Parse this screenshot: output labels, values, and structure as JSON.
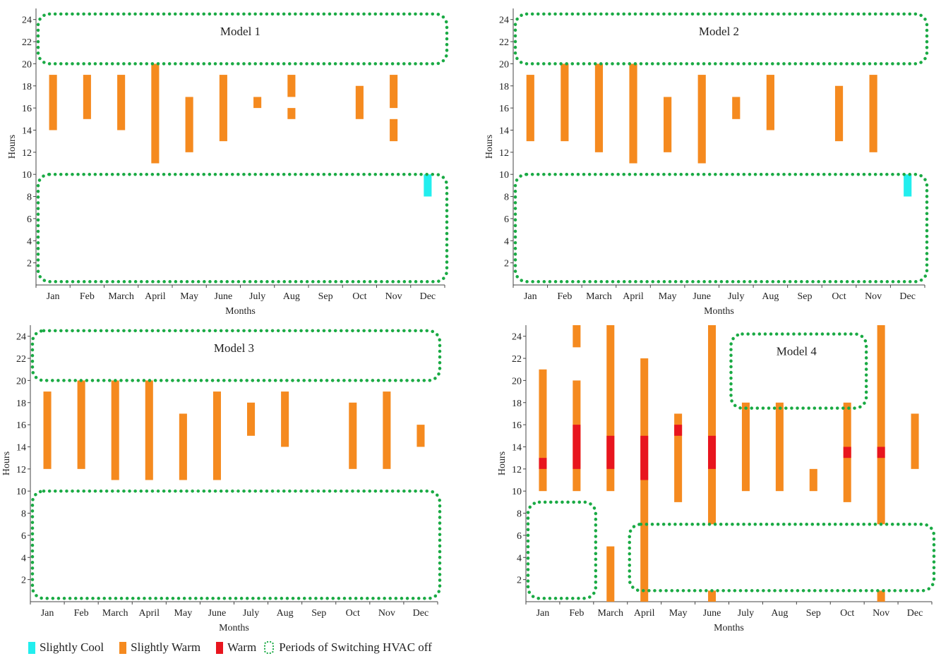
{
  "colors": {
    "slightly_cool": "#22EEEE",
    "slightly_warm": "#F58A1F",
    "warm": "#E8151E",
    "hvac_off": "#1AAA44",
    "axis": "#444444",
    "text": "#222222"
  },
  "legend": {
    "slightly_cool": "Slightly Cool",
    "slightly_warm": "Slightly Warm",
    "warm": "Warm",
    "hvac_off": "Periods of Switching HVAC off"
  },
  "chart_data": [
    {
      "type": "bar",
      "title": "Model 1",
      "xlabel": "Months",
      "ylabel": "Hours",
      "categories": [
        "Jan",
        "Feb",
        "March",
        "April",
        "May",
        "June",
        "July",
        "Aug",
        "Sep",
        "Oct",
        "Nov",
        "Dec"
      ],
      "y_ticks": [
        2,
        4,
        6,
        8,
        10,
        12,
        14,
        16,
        18,
        20,
        22,
        24
      ],
      "ylim": [
        0,
        25
      ],
      "bars": [
        {
          "month": "Jan",
          "start": 14,
          "end": 19,
          "level": "slightly_warm"
        },
        {
          "month": "Feb",
          "start": 15,
          "end": 19,
          "level": "slightly_warm"
        },
        {
          "month": "March",
          "start": 14,
          "end": 19,
          "level": "slightly_warm"
        },
        {
          "month": "April",
          "start": 11,
          "end": 20,
          "level": "slightly_warm"
        },
        {
          "month": "May",
          "start": 12,
          "end": 17,
          "level": "slightly_warm"
        },
        {
          "month": "June",
          "start": 13,
          "end": 19,
          "level": "slightly_warm"
        },
        {
          "month": "July",
          "start": 16,
          "end": 17,
          "level": "slightly_warm"
        },
        {
          "month": "Aug",
          "start": 17,
          "end": 19,
          "level": "slightly_warm"
        },
        {
          "month": "Aug",
          "start": 15,
          "end": 16,
          "level": "slightly_warm"
        },
        {
          "month": "Oct",
          "start": 15,
          "end": 18,
          "level": "slightly_warm"
        },
        {
          "month": "Nov",
          "start": 16,
          "end": 19,
          "level": "slightly_warm"
        },
        {
          "month": "Nov",
          "start": 13,
          "end": 15,
          "level": "slightly_warm"
        },
        {
          "month": "Dec",
          "start": 8,
          "end": 10,
          "level": "slightly_cool"
        }
      ],
      "hvac_off_periods": [
        {
          "from_month": "Jan",
          "to_month": "Dec",
          "start": 20,
          "end": 24.5
        },
        {
          "from_month": "Jan",
          "to_month": "Dec",
          "start": 0.3,
          "end": 10
        }
      ]
    },
    {
      "type": "bar",
      "title": "Model 2",
      "xlabel": "Months",
      "ylabel": "Hours",
      "categories": [
        "Jan",
        "Feb",
        "March",
        "April",
        "May",
        "June",
        "July",
        "Aug",
        "Sep",
        "Oct",
        "Nov",
        "Dec"
      ],
      "y_ticks": [
        2,
        4,
        6,
        8,
        10,
        12,
        14,
        16,
        18,
        20,
        22,
        24
      ],
      "ylim": [
        0,
        25
      ],
      "bars": [
        {
          "month": "Jan",
          "start": 13,
          "end": 19,
          "level": "slightly_warm"
        },
        {
          "month": "Feb",
          "start": 13,
          "end": 20,
          "level": "slightly_warm"
        },
        {
          "month": "March",
          "start": 12,
          "end": 20,
          "level": "slightly_warm"
        },
        {
          "month": "April",
          "start": 11,
          "end": 20,
          "level": "slightly_warm"
        },
        {
          "month": "May",
          "start": 12,
          "end": 17,
          "level": "slightly_warm"
        },
        {
          "month": "June",
          "start": 11,
          "end": 19,
          "level": "slightly_warm"
        },
        {
          "month": "July",
          "start": 15,
          "end": 17,
          "level": "slightly_warm"
        },
        {
          "month": "Aug",
          "start": 14,
          "end": 19,
          "level": "slightly_warm"
        },
        {
          "month": "Oct",
          "start": 13,
          "end": 18,
          "level": "slightly_warm"
        },
        {
          "month": "Nov",
          "start": 12,
          "end": 19,
          "level": "slightly_warm"
        },
        {
          "month": "Dec",
          "start": 8,
          "end": 10,
          "level": "slightly_cool"
        }
      ],
      "hvac_off_periods": [
        {
          "from_month": "Jan",
          "to_month": "Dec",
          "start": 20,
          "end": 24.5
        },
        {
          "from_month": "Jan",
          "to_month": "Dec",
          "start": 0.3,
          "end": 10
        }
      ]
    },
    {
      "type": "bar",
      "title": "Model 3",
      "xlabel": "Months",
      "ylabel": "Hours",
      "categories": [
        "Jan",
        "Feb",
        "March",
        "April",
        "May",
        "June",
        "July",
        "Aug",
        "Sep",
        "Oct",
        "Nov",
        "Dec"
      ],
      "y_ticks": [
        2,
        4,
        6,
        8,
        10,
        12,
        14,
        16,
        18,
        20,
        22,
        24
      ],
      "ylim": [
        0,
        25
      ],
      "bars": [
        {
          "month": "Jan",
          "start": 12,
          "end": 19,
          "level": "slightly_warm"
        },
        {
          "month": "Feb",
          "start": 12,
          "end": 20,
          "level": "slightly_warm"
        },
        {
          "month": "March",
          "start": 11,
          "end": 20,
          "level": "slightly_warm"
        },
        {
          "month": "April",
          "start": 11,
          "end": 20,
          "level": "slightly_warm"
        },
        {
          "month": "May",
          "start": 11,
          "end": 17,
          "level": "slightly_warm"
        },
        {
          "month": "June",
          "start": 11,
          "end": 19,
          "level": "slightly_warm"
        },
        {
          "month": "July",
          "start": 15,
          "end": 18,
          "level": "slightly_warm"
        },
        {
          "month": "Aug",
          "start": 14,
          "end": 19,
          "level": "slightly_warm"
        },
        {
          "month": "Oct",
          "start": 12,
          "end": 18,
          "level": "slightly_warm"
        },
        {
          "month": "Nov",
          "start": 12,
          "end": 19,
          "level": "slightly_warm"
        },
        {
          "month": "Dec",
          "start": 14,
          "end": 16,
          "level": "slightly_warm"
        }
      ],
      "hvac_off_periods": [
        {
          "from_month": "Jan",
          "to_month": "Dec",
          "start": 20,
          "end": 24.5
        },
        {
          "from_month": "Jan",
          "to_month": "Dec",
          "start": 0.3,
          "end": 10
        }
      ]
    },
    {
      "type": "bar",
      "title": "Model 4",
      "xlabel": "Months",
      "ylabel": "Hours",
      "categories": [
        "Jan",
        "Feb",
        "March",
        "April",
        "May",
        "June",
        "July",
        "Aug",
        "Sep",
        "Oct",
        "Nov",
        "Dec"
      ],
      "y_ticks": [
        2,
        4,
        6,
        8,
        10,
        12,
        14,
        16,
        18,
        20,
        22,
        24
      ],
      "ylim": [
        0,
        25
      ],
      "bars": [
        {
          "month": "Jan",
          "start": 10,
          "end": 21,
          "level": "slightly_warm"
        },
        {
          "month": "Jan",
          "start": 12,
          "end": 13,
          "level": "warm"
        },
        {
          "month": "Feb",
          "start": 23,
          "end": 25,
          "level": "slightly_warm"
        },
        {
          "month": "Feb",
          "start": 10,
          "end": 20,
          "level": "slightly_warm"
        },
        {
          "month": "Feb",
          "start": 12,
          "end": 16,
          "level": "warm"
        },
        {
          "month": "March",
          "start": 10,
          "end": 25,
          "level": "slightly_warm"
        },
        {
          "month": "March",
          "start": 12,
          "end": 15,
          "level": "warm"
        },
        {
          "month": "March",
          "start": 0,
          "end": 5,
          "level": "slightly_warm"
        },
        {
          "month": "April",
          "start": 0,
          "end": 22,
          "level": "slightly_warm"
        },
        {
          "month": "April",
          "start": 11,
          "end": 15,
          "level": "warm"
        },
        {
          "month": "May",
          "start": 9,
          "end": 17,
          "level": "slightly_warm"
        },
        {
          "month": "May",
          "start": 15,
          "end": 16,
          "level": "warm"
        },
        {
          "month": "June",
          "start": 7,
          "end": 25,
          "level": "slightly_warm"
        },
        {
          "month": "June",
          "start": 12,
          "end": 15,
          "level": "warm"
        },
        {
          "month": "June",
          "start": 0,
          "end": 1,
          "level": "slightly_warm"
        },
        {
          "month": "July",
          "start": 10,
          "end": 18,
          "level": "slightly_warm"
        },
        {
          "month": "Aug",
          "start": 10,
          "end": 18,
          "level": "slightly_warm"
        },
        {
          "month": "Sep",
          "start": 10,
          "end": 12,
          "level": "slightly_warm"
        },
        {
          "month": "Oct",
          "start": 9,
          "end": 18,
          "level": "slightly_warm"
        },
        {
          "month": "Oct",
          "start": 13,
          "end": 14,
          "level": "warm"
        },
        {
          "month": "Nov",
          "start": 7,
          "end": 25,
          "level": "slightly_warm"
        },
        {
          "month": "Nov",
          "start": 13,
          "end": 14,
          "level": "warm"
        },
        {
          "month": "Nov",
          "start": 0,
          "end": 1,
          "level": "slightly_warm"
        },
        {
          "month": "Dec",
          "start": 12,
          "end": 17,
          "level": "slightly_warm"
        }
      ],
      "hvac_off_periods": [
        {
          "from_month": "July",
          "to_month": "Oct",
          "start": 17.5,
          "end": 24.2
        },
        {
          "from_month": "Jan",
          "to_month": "Feb",
          "start": 0.3,
          "end": 9
        },
        {
          "from_month": "April",
          "to_month": "Dec",
          "start": 1,
          "end": 7
        }
      ]
    }
  ]
}
